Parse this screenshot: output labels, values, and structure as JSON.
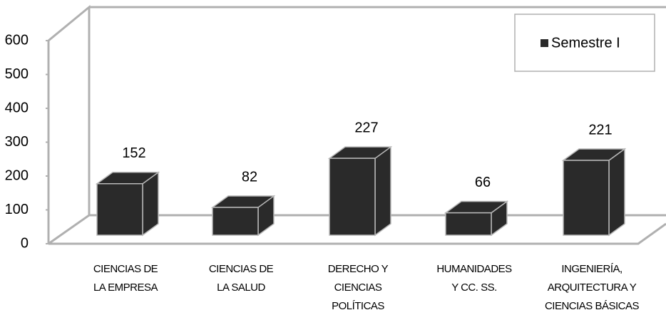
{
  "chart_data": {
    "type": "bar3d",
    "categories": [
      [
        "CIENCIAS DE",
        "LA EMPRESA"
      ],
      [
        "CIENCIAS DE",
        "LA SALUD"
      ],
      [
        "DERECHO Y",
        "CIENCIAS",
        "POLÍTICAS"
      ],
      [
        "HUMANIDADES",
        "Y CC. SS."
      ],
      [
        "INGENIERÍA,",
        "ARQUITECTURA Y",
        "CIENCIAS BÁSICAS"
      ]
    ],
    "series": [
      {
        "name": "Semestre I",
        "color": "#2a2a2a",
        "values": [
          152,
          82,
          227,
          66,
          221
        ]
      }
    ],
    "ylim": [
      0,
      600
    ],
    "yticks": [
      0,
      100,
      200,
      300,
      400,
      500,
      600
    ],
    "legend": "top-right"
  }
}
